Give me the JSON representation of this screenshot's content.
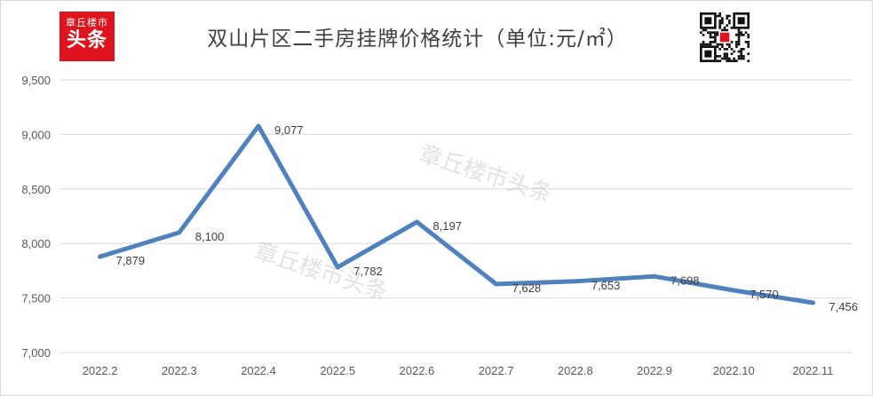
{
  "title": "双山片区二手房挂牌价格统计（单位:元/㎡）",
  "logo": {
    "line1": "章丘楼市",
    "line2": "头条"
  },
  "watermark": "章丘楼市头条",
  "colors": {
    "line": "#4f81bd",
    "grid": "#d9d9d9",
    "logo_bg": "#e0141e"
  },
  "icons": {
    "logo": "brand-logo",
    "qr": "qr-code-icon"
  },
  "chart_data": {
    "type": "line",
    "title": "双山片区二手房挂牌价格统计（单位:元/㎡）",
    "xlabel": "",
    "ylabel": "",
    "categories": [
      "2022.2",
      "2022.3",
      "2022.4",
      "2022.5",
      "2022.6",
      "2022.7",
      "2022.8",
      "2022.9",
      "2022.10",
      "2022.11"
    ],
    "values": [
      7879,
      8100,
      9077,
      7782,
      8197,
      7628,
      7653,
      7698,
      7570,
      7456
    ],
    "data_labels": [
      "7,879",
      "8,100",
      "9,077",
      "7,782",
      "8,197",
      "7,628",
      "7,653",
      "7,698",
      "7,570",
      "7,456"
    ],
    "ylim": [
      7000,
      9500
    ],
    "yticks": [
      "7,000",
      "7,500",
      "8,000",
      "8,500",
      "9,000",
      "9,500"
    ],
    "grid": true,
    "legend": "none"
  }
}
